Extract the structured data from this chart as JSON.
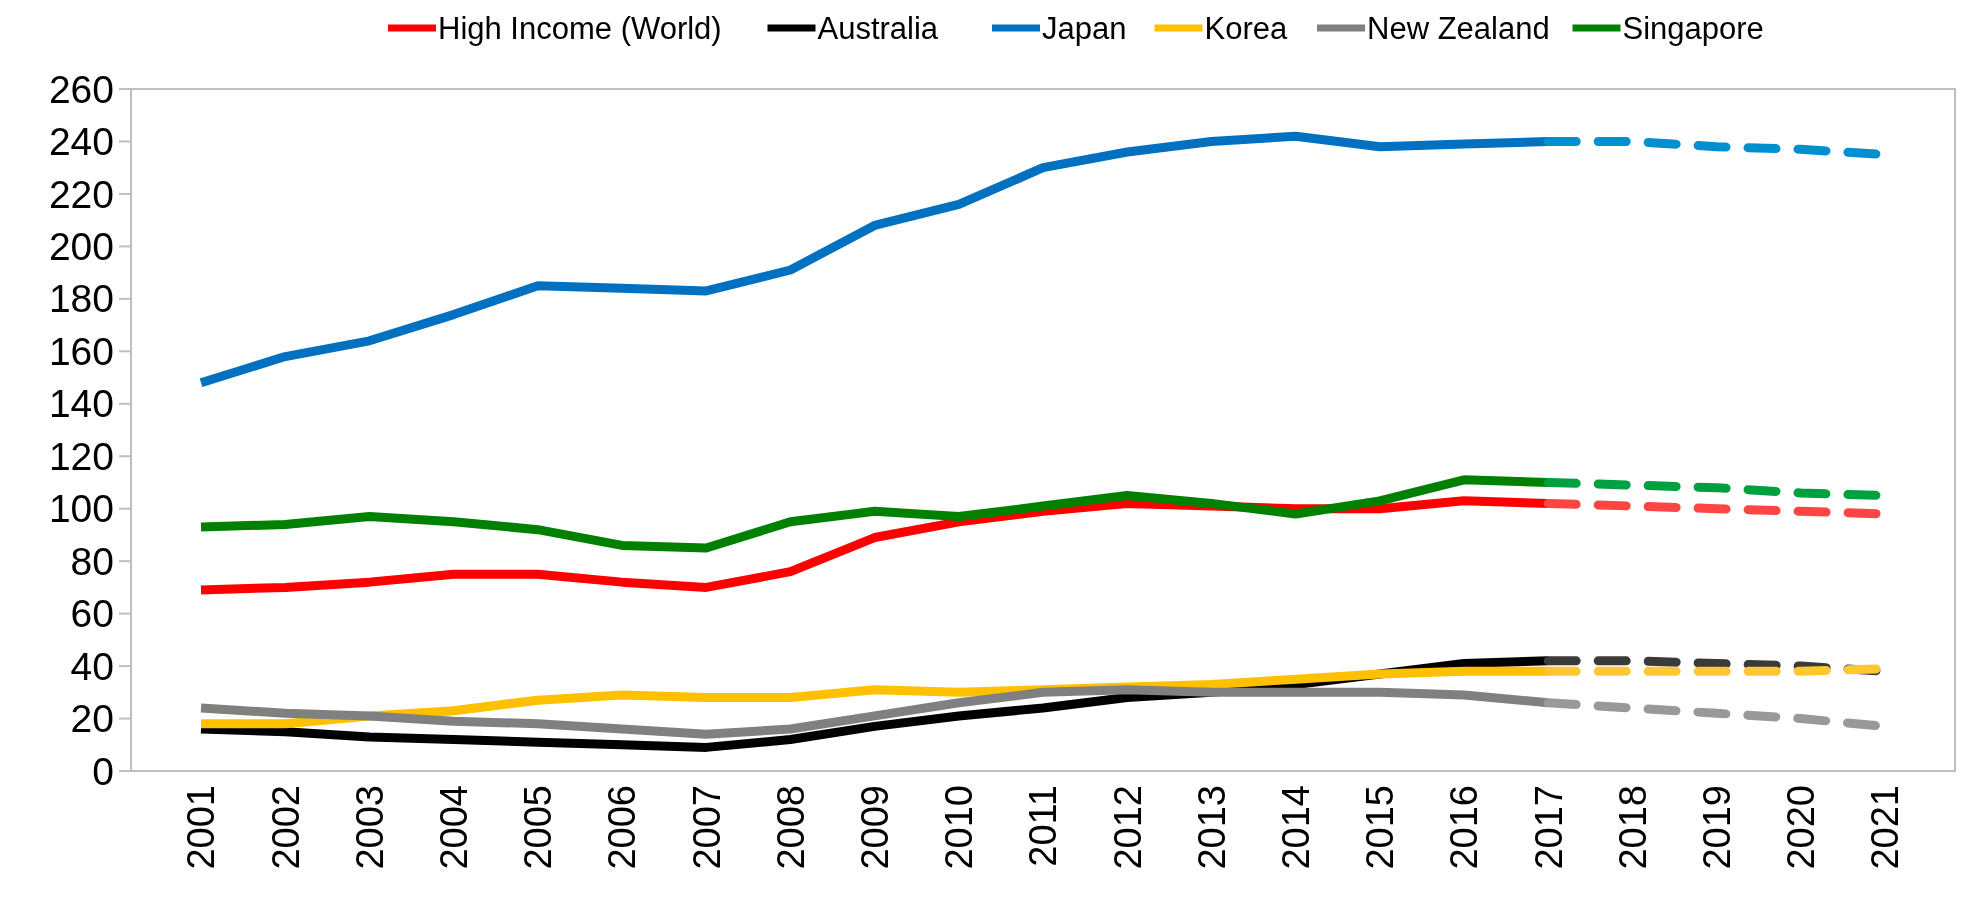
{
  "chart_data": {
    "type": "line",
    "categories": [
      "2001",
      "2002",
      "2003",
      "2004",
      "2005",
      "2006",
      "2007",
      "2008",
      "2009",
      "2010",
      "2011",
      "2012",
      "2013",
      "2014",
      "2015",
      "2016",
      "2017",
      "2018",
      "2019",
      "2020",
      "2021"
    ],
    "ylim": [
      0,
      260
    ],
    "yticks": [
      0,
      20,
      40,
      60,
      80,
      100,
      120,
      140,
      160,
      180,
      200,
      220,
      240,
      260
    ],
    "grid": false,
    "legend": "top",
    "marker": "none",
    "series": [
      {
        "name": "High Income (World)",
        "color": "#ff0000",
        "line_style": "solid",
        "values": [
          69,
          70,
          72,
          75,
          75,
          72,
          70,
          76,
          89,
          95,
          99,
          102,
          101,
          100,
          100,
          103,
          102,
          null,
          null,
          null,
          null
        ]
      },
      {
        "name": "Australia",
        "color": "#000000",
        "line_style": "solid",
        "values": [
          16,
          15,
          13,
          12,
          11,
          10,
          9,
          12,
          17,
          21,
          24,
          28,
          30,
          33,
          37,
          41,
          42,
          null,
          null,
          null,
          null
        ]
      },
      {
        "name": "Japan",
        "color": "#0070c0",
        "line_style": "solid",
        "values": [
          148,
          158,
          164,
          174,
          185,
          184,
          183,
          191,
          208,
          216,
          230,
          236,
          240,
          242,
          238,
          239,
          240,
          null,
          null,
          null,
          null
        ]
      },
      {
        "name": "Korea",
        "color": "#ffc000",
        "line_style": "solid",
        "values": [
          18,
          18,
          21,
          23,
          27,
          29,
          28,
          28,
          31,
          30,
          31,
          32,
          33,
          35,
          37,
          38,
          38,
          null,
          null,
          null,
          null
        ]
      },
      {
        "name": "New Zealand",
        "color": "#808080",
        "line_style": "solid",
        "values": [
          24,
          22,
          21,
          19,
          18,
          16,
          14,
          16,
          21,
          26,
          30,
          31,
          30,
          30,
          30,
          29,
          26,
          null,
          null,
          null,
          null
        ]
      },
      {
        "name": "Singapore",
        "color": "#008000",
        "line_style": "solid",
        "values": [
          93,
          94,
          97,
          95,
          92,
          86,
          85,
          95,
          99,
          97,
          101,
          105,
          102,
          98,
          103,
          111,
          110,
          null,
          null,
          null,
          null
        ]
      },
      {
        "color": "#ff4444",
        "line_style": "dashed",
        "values": [
          null,
          null,
          null,
          null,
          null,
          null,
          null,
          null,
          null,
          null,
          null,
          null,
          null,
          null,
          null,
          null,
          102,
          101,
          100,
          99,
          98
        ]
      },
      {
        "color": "#3a3a3a",
        "line_style": "dashed",
        "values": [
          null,
          null,
          null,
          null,
          null,
          null,
          null,
          null,
          null,
          null,
          null,
          null,
          null,
          null,
          null,
          null,
          42,
          42,
          41,
          40,
          38
        ]
      },
      {
        "color": "#0090d0",
        "line_style": "dashed",
        "values": [
          null,
          null,
          null,
          null,
          null,
          null,
          null,
          null,
          null,
          null,
          null,
          null,
          null,
          null,
          null,
          null,
          240,
          240,
          238,
          237,
          235
        ]
      },
      {
        "color": "#ffc830",
        "line_style": "dashed",
        "values": [
          null,
          null,
          null,
          null,
          null,
          null,
          null,
          null,
          null,
          null,
          null,
          null,
          null,
          null,
          null,
          null,
          38,
          38,
          38,
          38,
          39
        ]
      },
      {
        "color": "#999999",
        "line_style": "dashed",
        "values": [
          null,
          null,
          null,
          null,
          null,
          null,
          null,
          null,
          null,
          null,
          null,
          null,
          null,
          null,
          null,
          null,
          26,
          24,
          22,
          20,
          17
        ]
      },
      {
        "color": "#00a040",
        "line_style": "dashed",
        "values": [
          null,
          null,
          null,
          null,
          null,
          null,
          null,
          null,
          null,
          null,
          null,
          null,
          null,
          null,
          null,
          null,
          110,
          109,
          108,
          106,
          105
        ]
      }
    ]
  }
}
